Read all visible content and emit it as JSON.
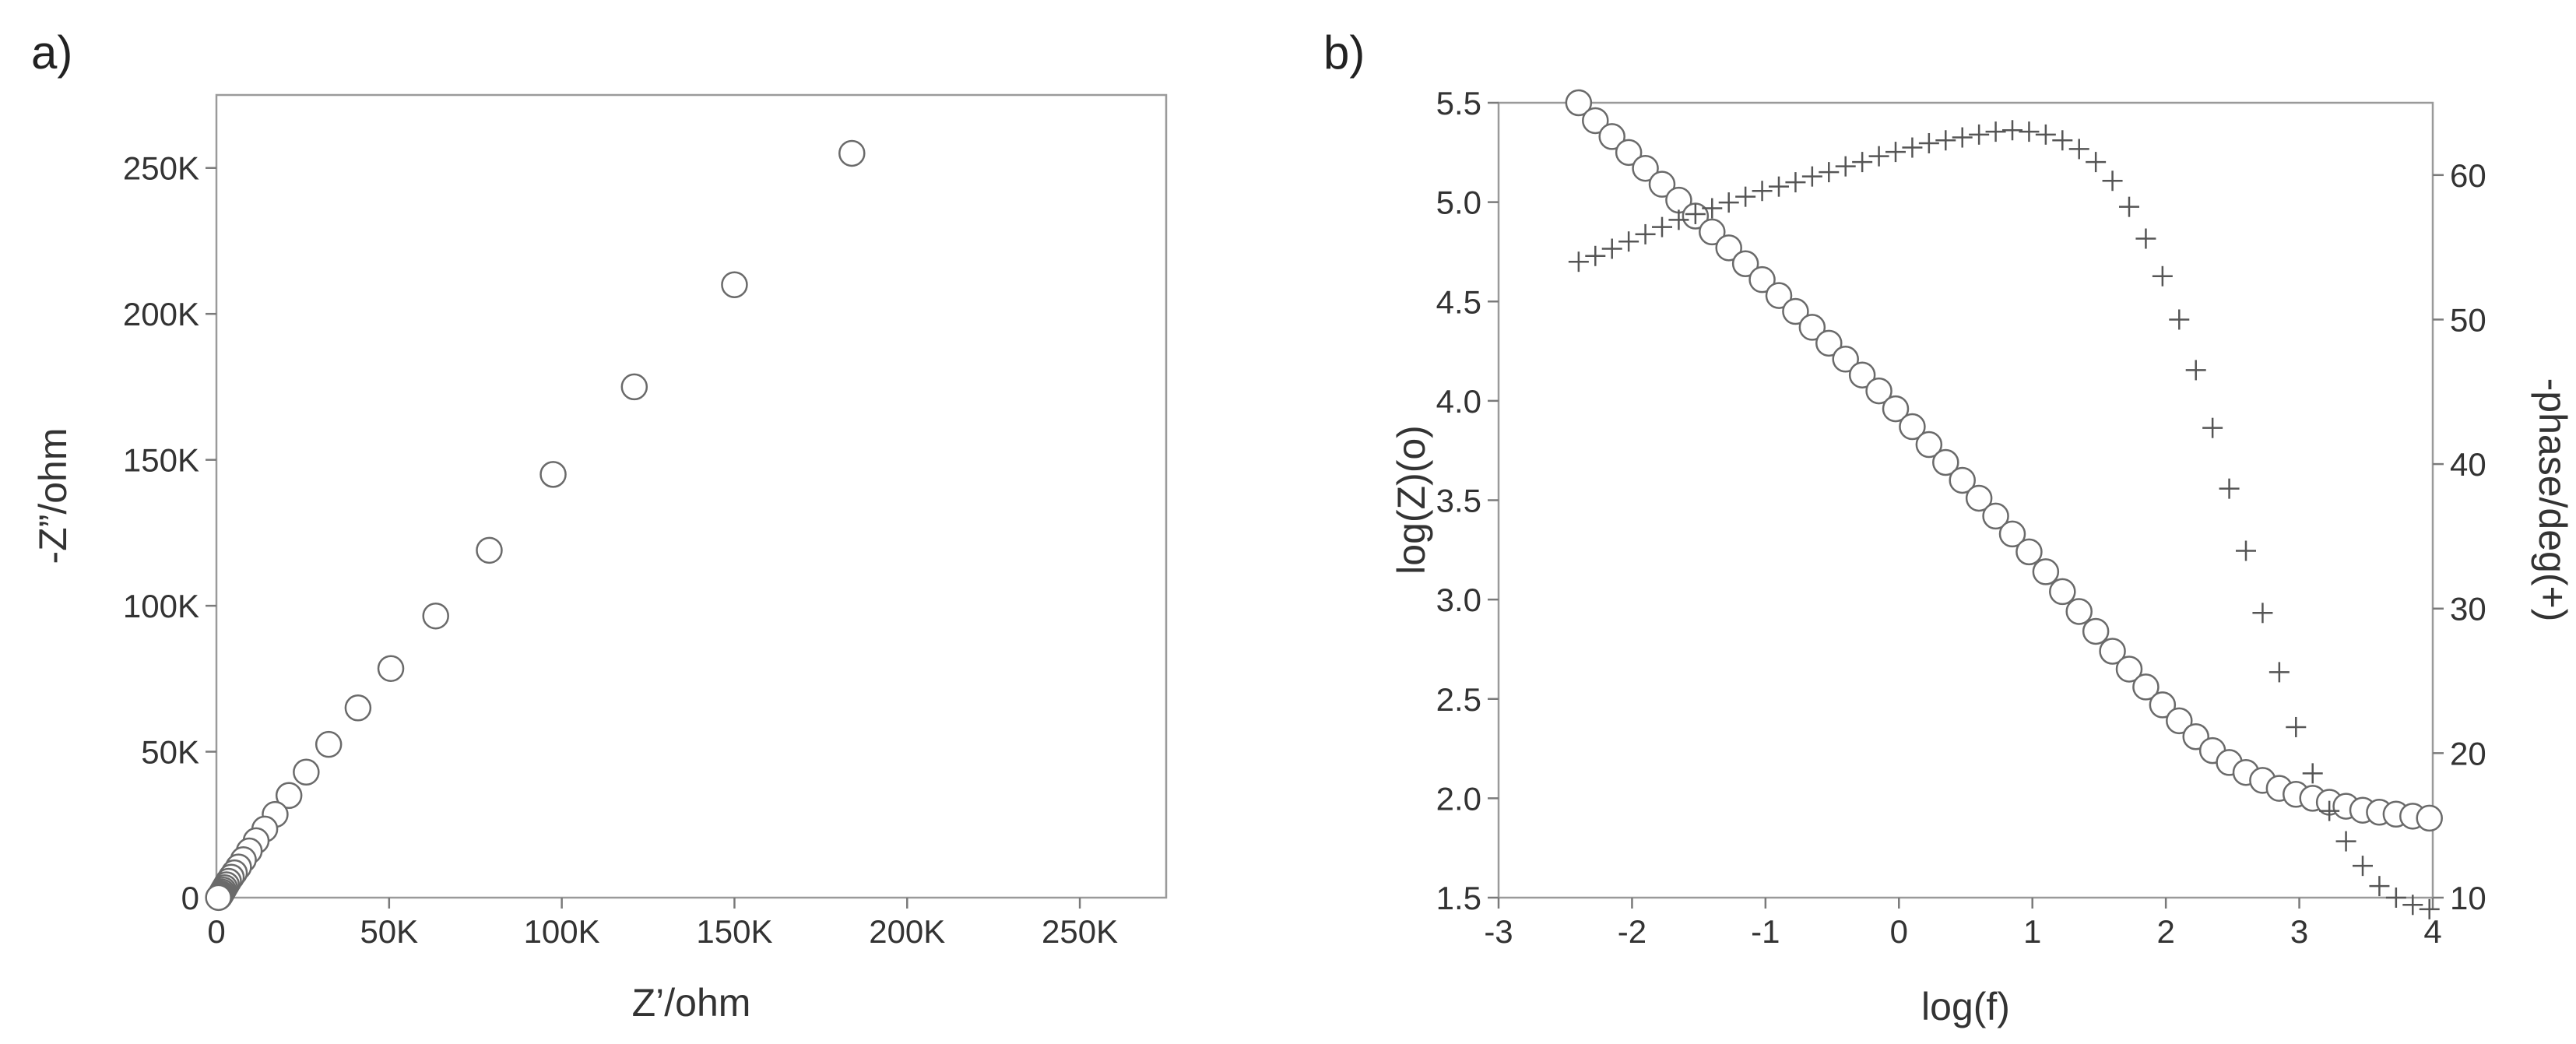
{
  "chart_data": [
    {
      "type": "scatter",
      "panel_label": "a)",
      "xlabel": "Z’/ohm",
      "ylabel": "-Z”/ohm",
      "xlim": [
        0,
        275000
      ],
      "ylim": [
        0,
        275000
      ],
      "x_ticks": [
        0,
        50000,
        100000,
        150000,
        200000,
        250000
      ],
      "x_tick_labels": [
        "0",
        "50K",
        "100K",
        "150K",
        "200K",
        "250K"
      ],
      "y_ticks": [
        0,
        50000,
        100000,
        150000,
        200000,
        250000
      ],
      "y_tick_labels": [
        "0",
        "50K",
        "100K",
        "150K",
        "200K",
        "250K"
      ],
      "grid": false,
      "series": [
        {
          "marker": "circle",
          "points": [
            [
              184000,
              255000
            ],
            [
              150000,
              210000
            ],
            [
              121000,
              175000
            ],
            [
              97500,
              145000
            ],
            [
              79000,
              119000
            ],
            [
              63500,
              96500
            ],
            [
              50500,
              78500
            ],
            [
              41000,
              65000
            ],
            [
              32500,
              52500
            ],
            [
              26000,
              43000
            ],
            [
              21000,
              35000
            ],
            [
              17000,
              28500
            ],
            [
              14000,
              23500
            ],
            [
              11500,
              19500
            ],
            [
              9500,
              16000
            ],
            [
              7800,
              13000
            ],
            [
              6400,
              10500
            ],
            [
              5200,
              8500
            ],
            [
              4300,
              7000
            ],
            [
              3500,
              5600
            ],
            [
              2900,
              4400
            ],
            [
              2400,
              3400
            ],
            [
              2000,
              2600
            ],
            [
              1700,
              1900
            ],
            [
              1400,
              1300
            ],
            [
              1200,
              900
            ],
            [
              1000,
              550
            ],
            [
              850,
              300
            ],
            [
              700,
              120
            ],
            [
              600,
              40
            ]
          ]
        }
      ]
    },
    {
      "type": "scatter",
      "panel_label": "b)",
      "xlabel": "log(f)",
      "ylabel": "log(Z)(o)",
      "y2label": "-phase/deg(+)",
      "xlim": [
        -3,
        4
      ],
      "ylim": [
        1.5,
        5.5
      ],
      "y2lim": [
        10,
        65
      ],
      "x_ticks": [
        -3,
        -2,
        -1,
        0,
        1,
        2,
        3,
        4
      ],
      "x_tick_labels": [
        "-3",
        "-2",
        "-1",
        "0",
        "1",
        "2",
        "3",
        "4"
      ],
      "y_ticks": [
        1.5,
        2.0,
        2.5,
        3.0,
        3.5,
        4.0,
        4.5,
        5.0,
        5.5
      ],
      "y_tick_labels": [
        "1.5",
        "2.0",
        "2.5",
        "3.0",
        "3.5",
        "4.0",
        "4.5",
        "5.0",
        "5.5"
      ],
      "y2_ticks": [
        10,
        20,
        30,
        40,
        50,
        60
      ],
      "y2_tick_labels": [
        "10",
        "20",
        "30",
        "40",
        "50",
        "60"
      ],
      "grid": false,
      "series": [
        {
          "marker": "circle",
          "axis": "left",
          "x": [
            -2.4,
            -2.275,
            -2.15,
            -2.025,
            -1.9,
            -1.775,
            -1.65,
            -1.525,
            -1.4,
            -1.275,
            -1.15,
            -1.025,
            -0.9,
            -0.775,
            -0.65,
            -0.525,
            -0.4,
            -0.275,
            -0.15,
            -0.025,
            0.1,
            0.225,
            0.35,
            0.475,
            0.6,
            0.725,
            0.85,
            0.975,
            1.1,
            1.225,
            1.35,
            1.475,
            1.6,
            1.725,
            1.85,
            1.975,
            2.1,
            2.225,
            2.35,
            2.475,
            2.6,
            2.725,
            2.85,
            2.975,
            3.1,
            3.225,
            3.35,
            3.475,
            3.6,
            3.725,
            3.85,
            3.975
          ],
          "y": [
            5.5,
            5.41,
            5.33,
            5.25,
            5.17,
            5.09,
            5.01,
            4.93,
            4.85,
            4.77,
            4.69,
            4.61,
            4.53,
            4.45,
            4.37,
            4.29,
            4.21,
            4.13,
            4.05,
            3.96,
            3.87,
            3.78,
            3.69,
            3.6,
            3.51,
            3.42,
            3.33,
            3.24,
            3.14,
            3.04,
            2.94,
            2.84,
            2.74,
            2.65,
            2.56,
            2.47,
            2.39,
            2.31,
            2.24,
            2.18,
            2.13,
            2.09,
            2.05,
            2.02,
            2.0,
            1.98,
            1.96,
            1.94,
            1.93,
            1.92,
            1.91,
            1.9
          ]
        },
        {
          "marker": "plus",
          "axis": "right",
          "x": [
            -2.4,
            -2.275,
            -2.15,
            -2.025,
            -1.9,
            -1.775,
            -1.65,
            -1.525,
            -1.4,
            -1.275,
            -1.15,
            -1.025,
            -0.9,
            -0.775,
            -0.65,
            -0.525,
            -0.4,
            -0.275,
            -0.15,
            -0.025,
            0.1,
            0.225,
            0.35,
            0.475,
            0.6,
            0.725,
            0.85,
            0.975,
            1.1,
            1.225,
            1.35,
            1.475,
            1.6,
            1.725,
            1.85,
            1.975,
            2.1,
            2.225,
            2.35,
            2.475,
            2.6,
            2.725,
            2.85,
            2.975,
            3.1,
            3.225,
            3.35,
            3.475,
            3.6,
            3.725,
            3.85,
            3.975
          ],
          "y": [
            54.0,
            54.4,
            54.9,
            55.4,
            55.9,
            56.4,
            56.9,
            57.3,
            57.7,
            58.1,
            58.5,
            58.9,
            59.2,
            59.5,
            59.9,
            60.2,
            60.6,
            60.9,
            61.3,
            61.6,
            61.9,
            62.2,
            62.4,
            62.6,
            62.8,
            63.0,
            63.1,
            63.0,
            62.8,
            62.4,
            61.8,
            60.9,
            59.6,
            57.8,
            55.6,
            53.0,
            50.0,
            46.5,
            42.5,
            38.3,
            34.0,
            29.7,
            25.6,
            21.8,
            18.6,
            16.0,
            13.9,
            12.2,
            10.8,
            10.0,
            9.5,
            9.2
          ]
        }
      ]
    }
  ]
}
